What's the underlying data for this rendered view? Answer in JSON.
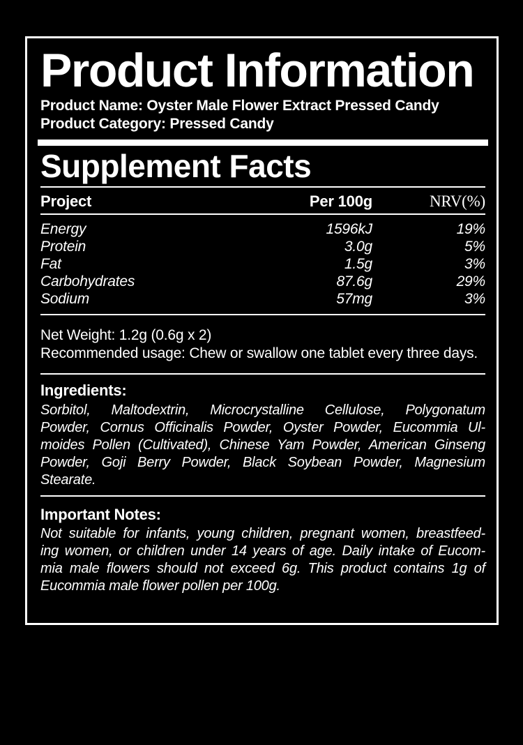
{
  "colors": {
    "background": "#000000",
    "text": "#ffffff",
    "border": "#ffffff"
  },
  "header": {
    "title": "Product Information",
    "product_name_line": "Product Name: Oyster Male Flower Extract Pressed Candy",
    "product_category_line": "Product Category: Pressed Candy"
  },
  "supplement_facts": {
    "title": "Supplement Facts",
    "columns": {
      "project": "Project",
      "per_100g": "Per 100g",
      "nrv": "NRV(%)"
    },
    "rows": [
      {
        "name": "Energy",
        "amount": "1596kJ",
        "nrv": "19%"
      },
      {
        "name": "Protein",
        "amount": "3.0g",
        "nrv": "5%"
      },
      {
        "name": "Fat",
        "amount": "1.5g",
        "nrv": "3%"
      },
      {
        "name": "Carbohydrates",
        "amount": "87.6g",
        "nrv": "29%"
      },
      {
        "name": "Sodium",
        "amount": "57mg",
        "nrv": "3%"
      }
    ]
  },
  "net_weight_line": "Net Weight: 1.2g (0.6g x 2)",
  "recommended_usage_line": "Recommended usage: Chew or swallow one tablet every three days.",
  "ingredients": {
    "heading": "Ingredients:",
    "lines": [
      "Sorbitol, Maltodextrin, Microcrystalline Cellulose, Polygonatum",
      "Powder, Cornus Officinalis Powder, Oyster Powder, Eucommia Ul-",
      "moides Pollen (Cultivated), Chinese Yam Powder, American Ginseng",
      "Powder, Goji Berry Powder, Black Soybean Powder, Magnesium",
      "Stearate."
    ]
  },
  "important_notes": {
    "heading": "Important Notes:",
    "lines": [
      "Not suitable for infants, young children, pregnant women, breastfeed-",
      "ing women, or children under 14 years of age. Daily intake of Eucom-",
      "mia male flowers should not exceed 6g. This product contains 1g of",
      "Eucommia male flower pollen per 100g."
    ]
  }
}
